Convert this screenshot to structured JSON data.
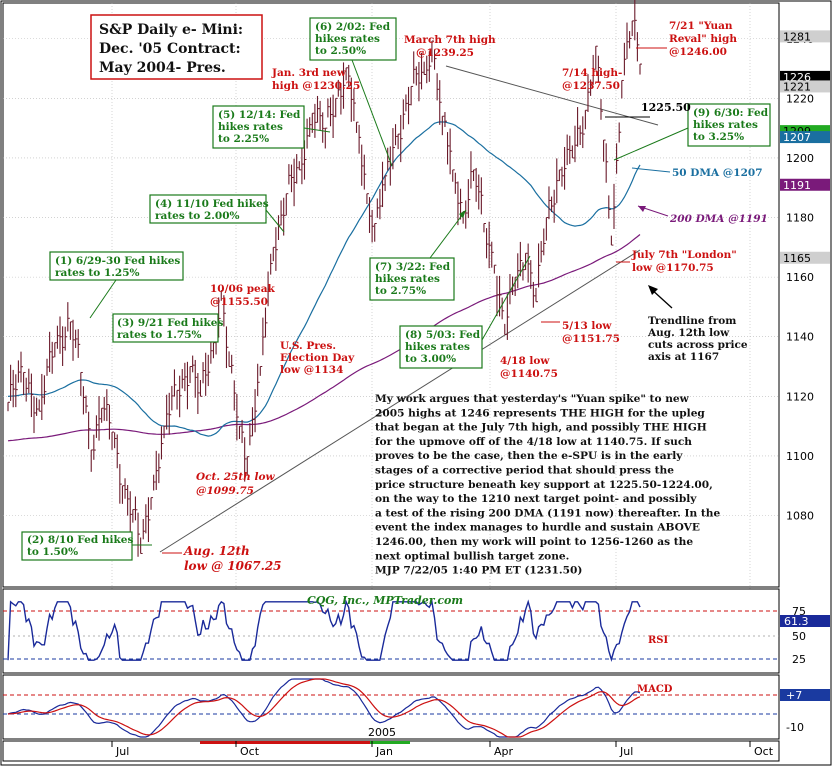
{
  "chart_data": {
    "type": "bar",
    "title": "S&P Daily e- Mini:",
    "subtitle_1": "Dec. '05 Contract:",
    "subtitle_2": "May 2004- Pres.",
    "y_ticks": [
      1080,
      1100,
      1120,
      1140,
      1160,
      1180,
      1200,
      1220,
      1240
    ],
    "ylim": [
      1056,
      1252
    ],
    "x_months": [
      "Jul",
      "Oct",
      "Jan",
      "Apr",
      "Jul",
      "Oct"
    ],
    "x_year_label": "2005",
    "price_markers": [
      {
        "label": "1281",
        "value": 1240.8,
        "bg": "#cfcfcf",
        "fg": "#000000"
      },
      {
        "label": "1226",
        "value": 1227.2,
        "bg": "#000000",
        "fg": "#ffffff"
      },
      {
        "label": "1221",
        "value": 1224.0,
        "bg": "#cfcfcf",
        "fg": "#000000"
      },
      {
        "label": "1209",
        "value": 1209.0,
        "bg": "#22aa22",
        "fg": "#000000"
      },
      {
        "label": "1207",
        "value": 1207.0,
        "bg": "#1a6fa0",
        "fg": "#ffffff"
      },
      {
        "label": "1191",
        "value": 1191.0,
        "bg": "#7a1a7a",
        "fg": "#ffffff"
      },
      {
        "label": "1165",
        "value": 1166.5,
        "bg": "#cfcfcf",
        "fg": "#000000"
      }
    ],
    "anchors": [
      {
        "x": 0,
        "y": 1118
      },
      {
        "x": 6,
        "y": 1128
      },
      {
        "x": 12,
        "y": 1115
      },
      {
        "x": 18,
        "y": 1138
      },
      {
        "x": 24,
        "y": 1145
      },
      {
        "x": 28,
        "y": 1128
      },
      {
        "x": 32,
        "y": 1102
      },
      {
        "x": 36,
        "y": 1116
      },
      {
        "x": 40,
        "y": 1108
      },
      {
        "x": 44,
        "y": 1090
      },
      {
        "x": 48,
        "y": 1082
      },
      {
        "x": 51,
        "y": 1067.25
      },
      {
        "x": 55,
        "y": 1086
      },
      {
        "x": 60,
        "y": 1110
      },
      {
        "x": 65,
        "y": 1122
      },
      {
        "x": 70,
        "y": 1130
      },
      {
        "x": 74,
        "y": 1120
      },
      {
        "x": 79,
        "y": 1138
      },
      {
        "x": 82,
        "y": 1155.5
      },
      {
        "x": 85,
        "y": 1130
      },
      {
        "x": 89,
        "y": 1110
      },
      {
        "x": 92,
        "y": 1099.75
      },
      {
        "x": 97,
        "y": 1130
      },
      {
        "x": 102,
        "y": 1170
      },
      {
        "x": 107,
        "y": 1188
      },
      {
        "x": 112,
        "y": 1196
      },
      {
        "x": 117,
        "y": 1215
      },
      {
        "x": 122,
        "y": 1210
      },
      {
        "x": 126,
        "y": 1220
      },
      {
        "x": 130,
        "y": 1230.25
      },
      {
        "x": 134,
        "y": 1212
      },
      {
        "x": 138,
        "y": 1188
      },
      {
        "x": 141,
        "y": 1178
      },
      {
        "x": 145,
        "y": 1194
      },
      {
        "x": 150,
        "y": 1208
      },
      {
        "x": 155,
        "y": 1224
      },
      {
        "x": 160,
        "y": 1228
      },
      {
        "x": 163,
        "y": 1239.25
      },
      {
        "x": 167,
        "y": 1214
      },
      {
        "x": 171,
        "y": 1196
      },
      {
        "x": 175,
        "y": 1182
      },
      {
        "x": 179,
        "y": 1196
      },
      {
        "x": 183,
        "y": 1178
      },
      {
        "x": 187,
        "y": 1164
      },
      {
        "x": 191,
        "y": 1140.75
      },
      {
        "x": 195,
        "y": 1160
      },
      {
        "x": 199,
        "y": 1168
      },
      {
        "x": 203,
        "y": 1151.75
      },
      {
        "x": 207,
        "y": 1180
      },
      {
        "x": 212,
        "y": 1196
      },
      {
        "x": 217,
        "y": 1200
      },
      {
        "x": 222,
        "y": 1216
      },
      {
        "x": 226,
        "y": 1237.5
      },
      {
        "x": 229,
        "y": 1206
      },
      {
        "x": 232,
        "y": 1170.75
      },
      {
        "x": 236,
        "y": 1226
      },
      {
        "x": 240,
        "y": 1246
      },
      {
        "x": 243,
        "y": 1231.5
      }
    ],
    "dma50_label": "50 DMA @1207",
    "dma200_label": "200 DMA @1191",
    "rsi_ticks": [
      75,
      50,
      25
    ],
    "rsi_readout": "61.3",
    "macd_ticks": [
      "+7",
      "-10"
    ],
    "macd_readout": "+7",
    "colors": {
      "ma50": "#1a6fa0",
      "ma200": "#7a1a7a",
      "bar": "#6a1a2a",
      "grid": "#b8b8b8",
      "rsi_hi": "#cc1111",
      "rsi_lo": "#1a3aa0"
    }
  },
  "header": {
    "title": "S&P Daily e- Mini:",
    "line2": "Dec. '05 Contract:",
    "line3": "May 2004- Pres."
  },
  "credit": "CQG, Inc., MPTrader.com",
  "indicators": {
    "rsi": "RSI",
    "macd": "MACD"
  },
  "fed_notes": [
    {
      "l1": "(1) 6/29-30 Fed hikes",
      "l2": "rates to 1.25%"
    },
    {
      "l1": "(2) 8/10 Fed hikes",
      "l2": "to 1.50%"
    },
    {
      "l1": "(3) 9/21 Fed hikes",
      "l2": "rates to 1.75%"
    },
    {
      "l1": "(4) 11/10 Fed hikes",
      "l2": "rates to 2.00%"
    },
    {
      "l1": "(5) 12/14: Fed",
      "l2": "hikes rates",
      "l3": "to 2.25%"
    },
    {
      "l1": "(6) 2/02: Fed",
      "l2": "hikes rates",
      "l3": "to 2.50%"
    },
    {
      "l1": "(7) 3/22: Fed",
      "l2": "hikes rates",
      "l3": "to 2.75%"
    },
    {
      "l1": "(8) 5/03: Fed",
      "l2": "hikes rates",
      "l3": "to 3.00%"
    },
    {
      "l1": "(9) 6/30: Fed",
      "l2": "hikes rates",
      "l3": "to 3.25%"
    }
  ],
  "red_notes": {
    "jan3_1": "Jan. 3rd new",
    "jan3_2": "high @1230.25",
    "march7_1": "March 7th high",
    "march7_2": "@1239.25",
    "yuan_1": "7/21 \"Yuan",
    "yuan_2": "Reval\" high",
    "yuan_3": "@1246.00",
    "jul14_1": "7/14 high-",
    "jul14_2": "@1237.50",
    "oct06_1": "10/06 peak",
    "oct06_2": "@1155.50",
    "elect_1": "U.S. Pres.",
    "elect_2": "Election Day",
    "elect_3": "low @1134",
    "oct25_1": "Oct. 25th low",
    "oct25_2": "@1099.75",
    "aug12_1": "Aug. 12th",
    "aug12_2": "low @ 1067.25",
    "may13_1": "5/13 low",
    "may13_2": "@1151.75",
    "apr18_1": "4/18 low",
    "apr18_2": "@1140.75",
    "london_1": "July 7th \"London\"",
    "london_2": "low @1170.75"
  },
  "support_label": "1225.50",
  "trendline_note": {
    "l1": "Trendline from",
    "l2": "Aug. 12th low",
    "l3": "cuts across price",
    "l4": "axis at 1167"
  },
  "commentary": [
    "My work argues that yesterday's \"Yuan spike\" to new",
    "2005 highs at 1246 represents THE HIGH for the upleg",
    "that began at the July 7th high, and possibly THE HIGH",
    "for the upmove off of the 4/18 low at 1140.75. If such",
    "proves to be the case, then the e-SPU is in the early",
    "stages of a corrective period that should press the",
    "price structure beneath key support at 1225.50-1224.00,",
    "on the way to the 1210 next target point- and possibly",
    "a test of the rising 200 DMA (1191 now) thereafter. In the",
    "event the index manages to hurdle and sustain ABOVE",
    "1246.00, then my work will point to 1256-1260 as the",
    "next optimal bullish target zone.",
    "MJP 7/22/05  1:40 PM ET (1231.50)"
  ]
}
